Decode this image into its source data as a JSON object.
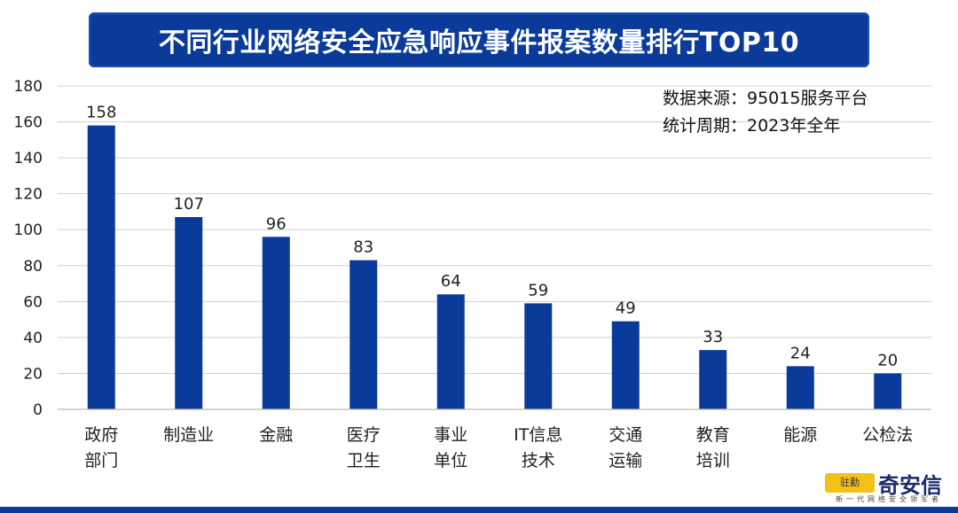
{
  "title": "不同行业网络安全应急响应事件报案数量排行TOP10",
  "notes": {
    "source": "数据来源：95015服务平台",
    "period": "统计周期：2023年全年"
  },
  "logo": {
    "name": "奇安信",
    "tagline": "新一代网络安全领军者",
    "mark_text": "驻勤"
  },
  "colors": {
    "bar": "#0a3a9a",
    "title_bg": "#0a3a9a",
    "grid": "#d0d0d0"
  },
  "chart_data": {
    "type": "bar",
    "categories": [
      [
        "政府",
        "部门"
      ],
      [
        "制造业"
      ],
      [
        "金融"
      ],
      [
        "医疗",
        "卫生"
      ],
      [
        "事业",
        "单位"
      ],
      [
        "IT信息",
        "技术"
      ],
      [
        "交通",
        "运输"
      ],
      [
        "教育",
        "培训"
      ],
      [
        "能源"
      ],
      [
        "公检法"
      ]
    ],
    "values": [
      158,
      107,
      96,
      83,
      64,
      59,
      49,
      33,
      24,
      20
    ],
    "ylim": [
      0,
      180
    ],
    "yticks": [
      0,
      20,
      40,
      60,
      80,
      100,
      120,
      140,
      160,
      180
    ],
    "grid": true,
    "data_labels": true
  }
}
